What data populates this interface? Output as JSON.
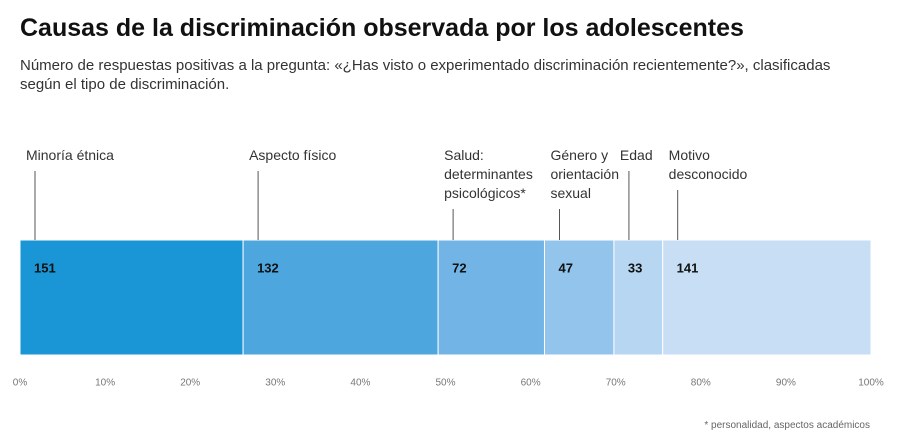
{
  "title": "Causas de la discriminación observada por los adolescentes",
  "subtitle": "Número de respuestas positivas a la pregunta: «¿Has visto o experimentado discriminación recientemente?», clasificadas según el tipo de discriminación.",
  "footnote": "* personalidad, aspectos académicos",
  "chart_data": {
    "type": "stacked_bar_100",
    "categories": [
      "Minoría étnica",
      "Aspecto físico",
      "Salud: determinantes psicológicos*",
      "Género y orientación sexual",
      "Edad",
      "Motivo desconocido"
    ],
    "values": [
      151,
      132,
      72,
      47,
      33,
      141
    ],
    "colors": [
      "#1a95d5",
      "#4ea6df",
      "#72b4e6",
      "#93c4ec",
      "#b7d6f2",
      "#c8def4"
    ],
    "xlim": [
      0,
      100
    ],
    "xticks": [
      {
        "value": 0,
        "label": "0%"
      },
      {
        "value": 10,
        "label": "10%"
      },
      {
        "value": 20,
        "label": "20%"
      },
      {
        "value": 30,
        "label": "30%"
      },
      {
        "value": 40,
        "label": "40%"
      },
      {
        "value": 50,
        "label": "50%"
      },
      {
        "value": 60,
        "label": "60%"
      },
      {
        "value": 70,
        "label": "70%"
      },
      {
        "value": 80,
        "label": "80%"
      },
      {
        "value": 90,
        "label": "90%"
      },
      {
        "value": 100,
        "label": "100%"
      }
    ]
  }
}
